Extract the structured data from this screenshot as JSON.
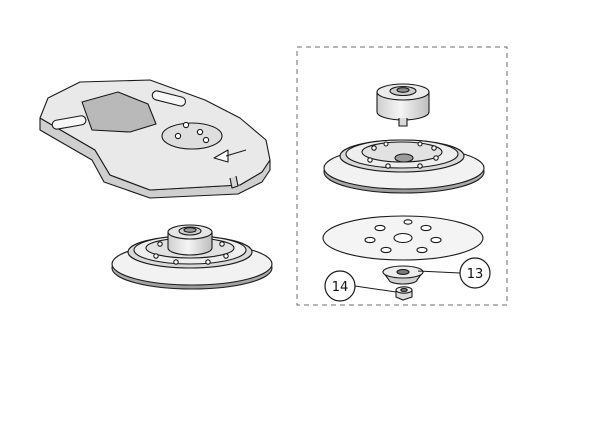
{
  "diagram": {
    "kind": "exploded-assembly",
    "callouts": [
      {
        "id": "callout-13",
        "label": "13",
        "part": "washer"
      },
      {
        "id": "callout-14",
        "label": "14",
        "part": "nut"
      }
    ],
    "colors": {
      "line": "#1a1a1a",
      "part_fill": "#e8e8e8",
      "part_fill_light": "#f2f2f2",
      "shadow": "#bdbdbd",
      "background": "#ffffff"
    }
  }
}
